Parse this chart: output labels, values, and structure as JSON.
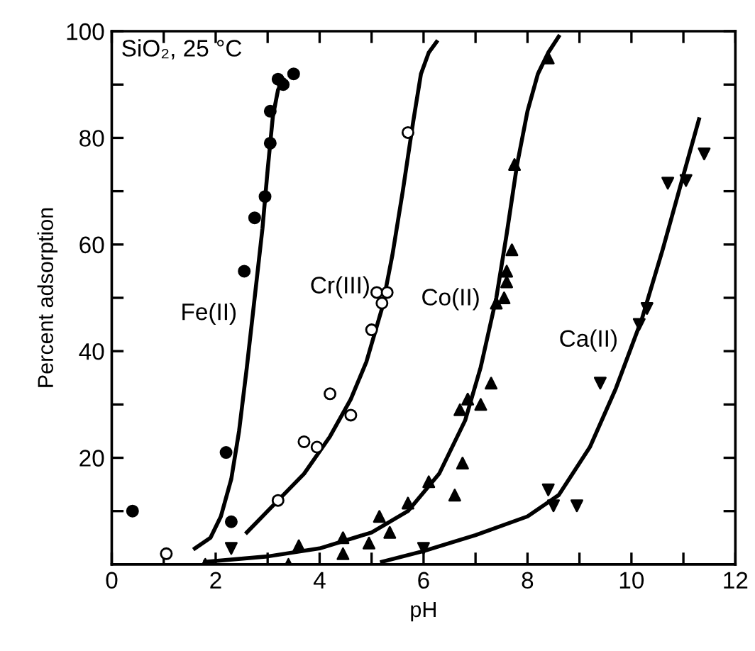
{
  "chart_data": {
    "type": "scatter",
    "xlabel": "pH",
    "ylabel": "Percent adsorption",
    "xlim": [
      0,
      12
    ],
    "ylim": [
      0,
      100
    ],
    "xticks": [
      0,
      {
        "value": 1,
        "label": null
      },
      2,
      {
        "value": 3,
        "label": null
      },
      4,
      {
        "value": 5,
        "label": null
      },
      6,
      {
        "value": 7,
        "label": null
      },
      8,
      {
        "value": 9,
        "label": null
      },
      10,
      {
        "value": 11,
        "label": null
      },
      12
    ],
    "yticks": [
      {
        "value": 10,
        "label": null
      },
      20,
      {
        "value": 30,
        "label": null
      },
      40,
      {
        "value": 50,
        "label": null
      },
      60,
      {
        "value": 70,
        "label": null
      },
      80,
      {
        "value": 90,
        "label": null
      },
      100
    ],
    "grid": false,
    "legend": false,
    "annotations": [
      "SiO₂, 25 °C"
    ],
    "series": [
      {
        "marker": "circle",
        "color": "#000000",
        "x": [
          0.4,
          2.2,
          2.3,
          2.55,
          2.75,
          2.95,
          3.05,
          3.05,
          3.2,
          3.3,
          3.5
        ],
        "values": [
          10,
          21,
          8,
          55,
          65,
          69,
          79,
          85,
          91,
          90,
          92
        ]
      },
      {
        "marker": "circle_open",
        "color": "#000000",
        "x": [
          1.05,
          3.2,
          3.7,
          3.95,
          4.2,
          4.6,
          5.0,
          5.1,
          5.2,
          5.3,
          5.7
        ],
        "values": [
          2,
          12,
          23,
          22,
          32,
          28,
          44,
          51,
          49,
          51,
          81
        ]
      },
      {
        "marker": "triangle",
        "color": "#000000",
        "x": [
          1.8,
          3.4,
          3.6,
          4.45,
          4.45,
          4.95,
          5.15,
          5.35,
          5.7,
          6.1,
          6.6,
          6.75,
          6.7,
          6.85,
          7.1,
          7.3,
          7.4,
          7.55,
          7.6,
          7.6,
          7.7,
          7.75,
          8.4
        ],
        "values": [
          0,
          0,
          3.5,
          5,
          2,
          4,
          9,
          6,
          11.5,
          15.5,
          13,
          19,
          29,
          31,
          30,
          34,
          49,
          50,
          53,
          55,
          59,
          75,
          95
        ]
      },
      {
        "marker": "triangle_down",
        "color": "#000000",
        "x": [
          2.3,
          6.0,
          8.4,
          8.5,
          8.95,
          9.4,
          10.15,
          10.3,
          10.7,
          11.05,
          11.4
        ],
        "values": [
          3,
          3,
          14,
          11,
          11,
          34,
          45,
          48,
          71.5,
          72,
          77
        ]
      },
      {
        "type": "line",
        "name": "Fe(II)",
        "marker": "none",
        "color": "#000000",
        "x": [
          1.6,
          1.9,
          2.1,
          2.3,
          2.45,
          2.6,
          2.75,
          2.9,
          3.0,
          3.1,
          3.2,
          3.3
        ],
        "values": [
          3,
          5,
          9,
          16,
          25,
          37,
          50,
          63,
          74,
          84,
          89,
          91
        ]
      },
      {
        "type": "line",
        "name": "Cr(III)",
        "marker": "none",
        "color": "#000000",
        "x": [
          2.6,
          3.2,
          3.7,
          4.2,
          4.6,
          4.9,
          5.2,
          5.4,
          5.6,
          5.8,
          5.95,
          6.1,
          6.25
        ],
        "values": [
          6,
          12,
          17,
          24,
          31,
          38,
          48,
          58,
          70,
          83,
          92,
          96,
          98
        ]
      },
      {
        "type": "line",
        "name": "Co(II)",
        "marker": "none",
        "color": "#000000",
        "x": [
          1.8,
          3,
          4,
          5,
          5.7,
          6.3,
          6.8,
          7.1,
          7.4,
          7.6,
          7.8,
          8.0,
          8.2,
          8.4,
          8.6
        ],
        "values": [
          0.5,
          1.5,
          3,
          6,
          10,
          17,
          27,
          37,
          50,
          62,
          75,
          85,
          92,
          96,
          99
        ]
      },
      {
        "type": "line",
        "name": "Ca(II)",
        "marker": "none",
        "color": "#000000",
        "x": [
          5.2,
          6,
          7,
          8,
          8.6,
          9.2,
          9.7,
          10.2,
          10.6,
          11.0,
          11.3
        ],
        "values": [
          0.5,
          2.5,
          5.5,
          9,
          13,
          22,
          33,
          46,
          59,
          73,
          83.5
        ]
      }
    ]
  }
}
